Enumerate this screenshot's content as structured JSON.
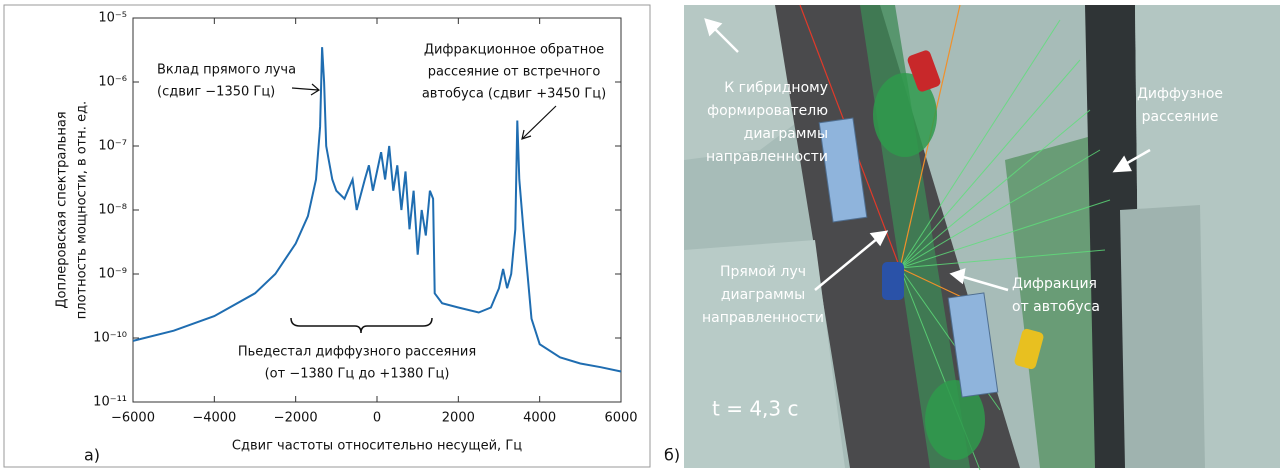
{
  "chart_data": {
    "type": "line",
    "log_y": true,
    "x_label": "Сдвиг частоты относительно несущей, Гц",
    "y_label": [
      "Доплеровская спектральная",
      "плотность мощности, в отн. ед."
    ],
    "xlim": [
      -6000,
      6000
    ],
    "xticks": [
      {
        "value": -6000,
        "label": "−6000"
      },
      {
        "value": -4000,
        "label": "−4000"
      },
      {
        "value": -2000,
        "label": "−2000"
      },
      0,
      2000,
      4000,
      6000
    ],
    "ylim": [
      1e-11,
      1e-05
    ],
    "yticks": [
      {
        "value": 1e-11,
        "label": "10⁻¹¹"
      },
      {
        "value": 1e-10,
        "label": "10⁻¹⁰"
      },
      {
        "value": 1e-09,
        "label": "10⁻⁹"
      },
      {
        "value": 1e-08,
        "label": "10⁻⁸"
      },
      {
        "value": 1e-07,
        "label": "10⁻⁷"
      },
      {
        "value": 1e-06,
        "label": "10⁻⁶"
      },
      {
        "value": 1e-05,
        "label": "10⁻⁵"
      }
    ],
    "x": [
      -6000,
      -5000,
      -4000,
      -3000,
      -2500,
      -2000,
      -1700,
      -1500,
      -1400,
      -1350,
      -1300,
      -1250,
      -1100,
      -1000,
      -800,
      -600,
      -500,
      -300,
      -200,
      -100,
      0,
      100,
      200,
      300,
      400,
      500,
      600,
      700,
      800,
      900,
      1000,
      1100,
      1200,
      1300,
      1380,
      1420,
      1600,
      2000,
      2500,
      2800,
      3000,
      3100,
      3200,
      3300,
      3400,
      3450,
      3500,
      3600,
      3700,
      3800,
      4000,
      4500,
      5000,
      5500,
      6000
    ],
    "series": [
      {
        "color": "#1f6db1",
        "values": [
          9e-11,
          1.3e-10,
          2.2e-10,
          5e-10,
          1e-09,
          3e-09,
          8e-09,
          3e-08,
          2e-07,
          3.5e-06,
          1e-06,
          1e-07,
          3e-08,
          2e-08,
          1.5e-08,
          3e-08,
          1e-08,
          3e-08,
          5e-08,
          2e-08,
          4e-08,
          8e-08,
          3e-08,
          1e-07,
          2e-08,
          5e-08,
          1e-08,
          4e-08,
          5e-09,
          2e-08,
          2e-09,
          1e-08,
          4e-09,
          2e-08,
          1.5e-08,
          5e-10,
          3.5e-10,
          3e-10,
          2.5e-10,
          3e-10,
          6e-10,
          1.2e-09,
          6e-10,
          1e-09,
          5e-09,
          2.5e-07,
          3e-08,
          5e-09,
          1e-09,
          2e-10,
          8e-11,
          5e-11,
          4e-11,
          3.5e-11,
          3e-11
        ]
      }
    ],
    "annotations": [
      {
        "text": [
          "Вклад прямого луча",
          "(сдвиг −1350 Гц)"
        ]
      },
      {
        "text": [
          "Дифракционное обратное",
          "рассеяние от встречного",
          "автобуса (сдвиг +3450 Гц)"
        ]
      },
      {
        "text": [
          "Пьедестал диффузного рассеяния",
          "(от −1380 Гц до +1380 Гц)"
        ]
      }
    ]
  },
  "panel_labels": {
    "a": "а)",
    "b": "б)"
  },
  "scene": {
    "time": "t = 4,3 с",
    "labels": [
      {
        "lines": [
          "К гибридному",
          "формирователю",
          "диаграммы",
          "направленности"
        ]
      },
      {
        "lines": [
          "Диффузное",
          "рассеяние"
        ]
      },
      {
        "lines": [
          "Прямой луч",
          "диаграммы",
          "направленности"
        ]
      },
      {
        "lines": [
          "Дифракция",
          "от автобуса"
        ]
      }
    ]
  }
}
